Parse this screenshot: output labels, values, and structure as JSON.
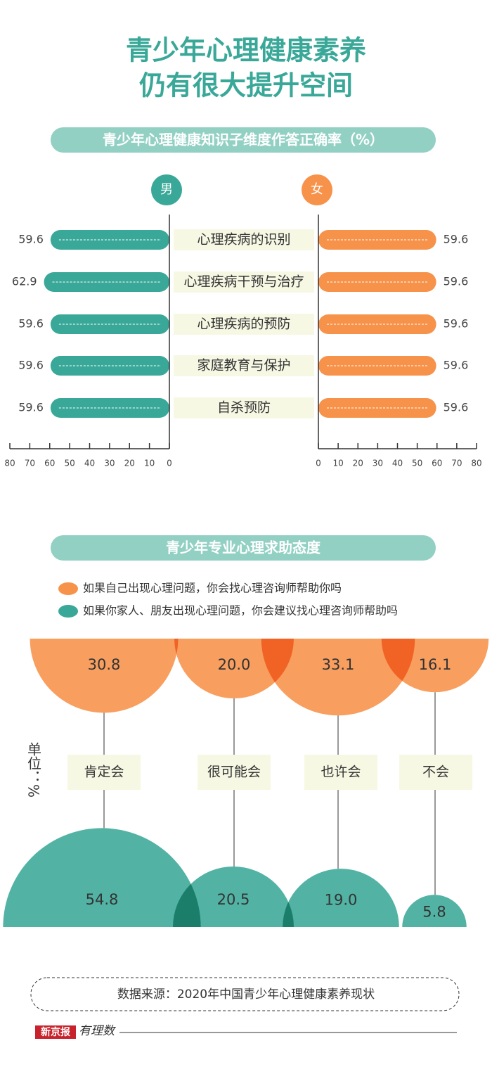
{
  "title": [
    "青少年心理健康素养",
    "仍有很大提升空间"
  ],
  "chart_data": [
    {
      "type": "butterfly",
      "title": "青少年心理健康知识子维度作答正确率（%）",
      "categories": [
        "心理疾病的识别",
        "心理疾病干预与治疗",
        "心理疾病的预防",
        "家庭教育与保护",
        "自杀预防"
      ],
      "series": [
        {
          "name": "男",
          "color": "#3aa898",
          "side": "left",
          "values": [
            59.6,
            62.9,
            59.6,
            59.6,
            59.6
          ]
        },
        {
          "name": "女",
          "color": "#f7924a",
          "side": "right",
          "values": [
            59.6,
            59.6,
            59.6,
            59.6,
            59.6
          ]
        }
      ],
      "xlim": [
        0,
        80
      ],
      "xticks": [
        0,
        10,
        20,
        30,
        40,
        50,
        60,
        70,
        80
      ]
    },
    {
      "type": "bubble",
      "title": "青少年专业心理求助态度",
      "unit": "单位：%",
      "categories": [
        "肯定会",
        "很可能会",
        "也许会",
        "不会"
      ],
      "series": [
        {
          "name": "如果自己出现心理问题，你会找心理咨询师帮助你吗",
          "color": "#f7924a",
          "position": "top",
          "values": [
            30.8,
            20.0,
            33.1,
            16.1
          ],
          "value_labels": [
            "30.8",
            "20.0",
            "33.1",
            "16.1"
          ]
        },
        {
          "name": "如果你家人、朋友出现心理问题，你会建议找心理咨询师帮助吗",
          "color": "#3aa898",
          "position": "bottom",
          "values": [
            54.8,
            20.5,
            19.0,
            5.8
          ],
          "value_labels": [
            "54.8",
            "20.5",
            "19.0",
            "5.8"
          ]
        }
      ]
    }
  ],
  "footer": {
    "source": "数据来源：2020年中国青少年心理健康素养现状",
    "brand": "新京报",
    "column": "有理数"
  }
}
